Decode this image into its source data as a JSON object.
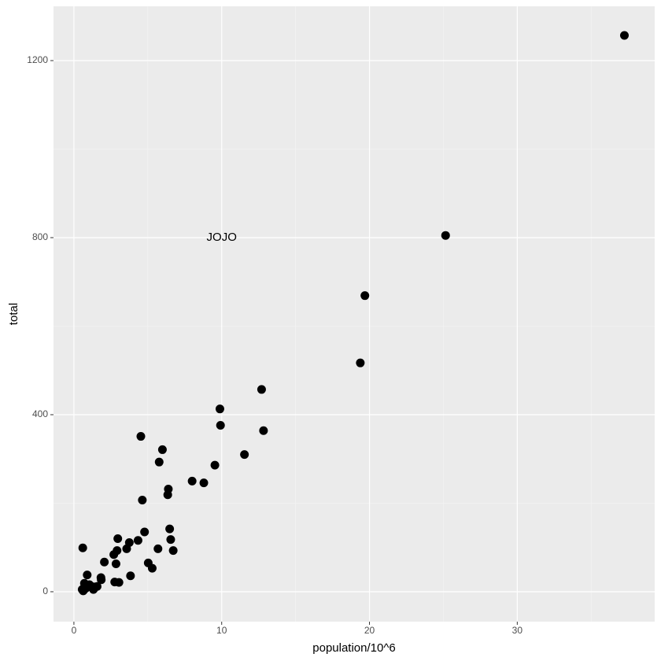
{
  "chart_data": {
    "type": "scatter",
    "x_label": "population/10^6",
    "y_label": "total",
    "x": [
      4.78,
      0.71,
      6.39,
      2.92,
      37.25,
      5.03,
      3.57,
      0.9,
      0.6,
      19.69,
      9.92,
      1.36,
      1.57,
      12.83,
      6.48,
      3.05,
      2.85,
      4.34,
      4.53,
      1.33,
      5.77,
      6.55,
      9.88,
      5.3,
      2.97,
      5.99,
      0.99,
      1.83,
      2.7,
      1.32,
      8.79,
      2.06,
      19.38,
      9.54,
      0.67,
      11.54,
      3.75,
      3.83,
      12.7,
      1.05,
      4.63,
      0.81,
      6.35,
      25.15,
      2.76,
      0.63,
      8.0,
      6.72,
      1.85,
      5.69,
      0.56
    ],
    "series": [
      {
        "color": "#000000",
        "values": [
          135,
          19,
          232,
          93,
          1257,
          65,
          97,
          38,
          99,
          669,
          376,
          7,
          12,
          364,
          142,
          21,
          63,
          116,
          351,
          11,
          293,
          118,
          413,
          53,
          120,
          321,
          12,
          32,
          84,
          5,
          246,
          67,
          517,
          286,
          4,
          310,
          111,
          36,
          457,
          16,
          207,
          8,
          219,
          805,
          22,
          2,
          250,
          93,
          27,
          97,
          5
        ]
      }
    ],
    "annotations": [
      {
        "text": "JOJO",
        "x": 10,
        "y": 800
      }
    ],
    "xlim": [
      -1.38,
      39.3
    ],
    "ylim": [
      -67.6,
      1322.7
    ],
    "xticks": [
      0,
      10,
      20,
      30
    ],
    "yticks": [
      0,
      400,
      800,
      1200
    ],
    "grid": true
  }
}
